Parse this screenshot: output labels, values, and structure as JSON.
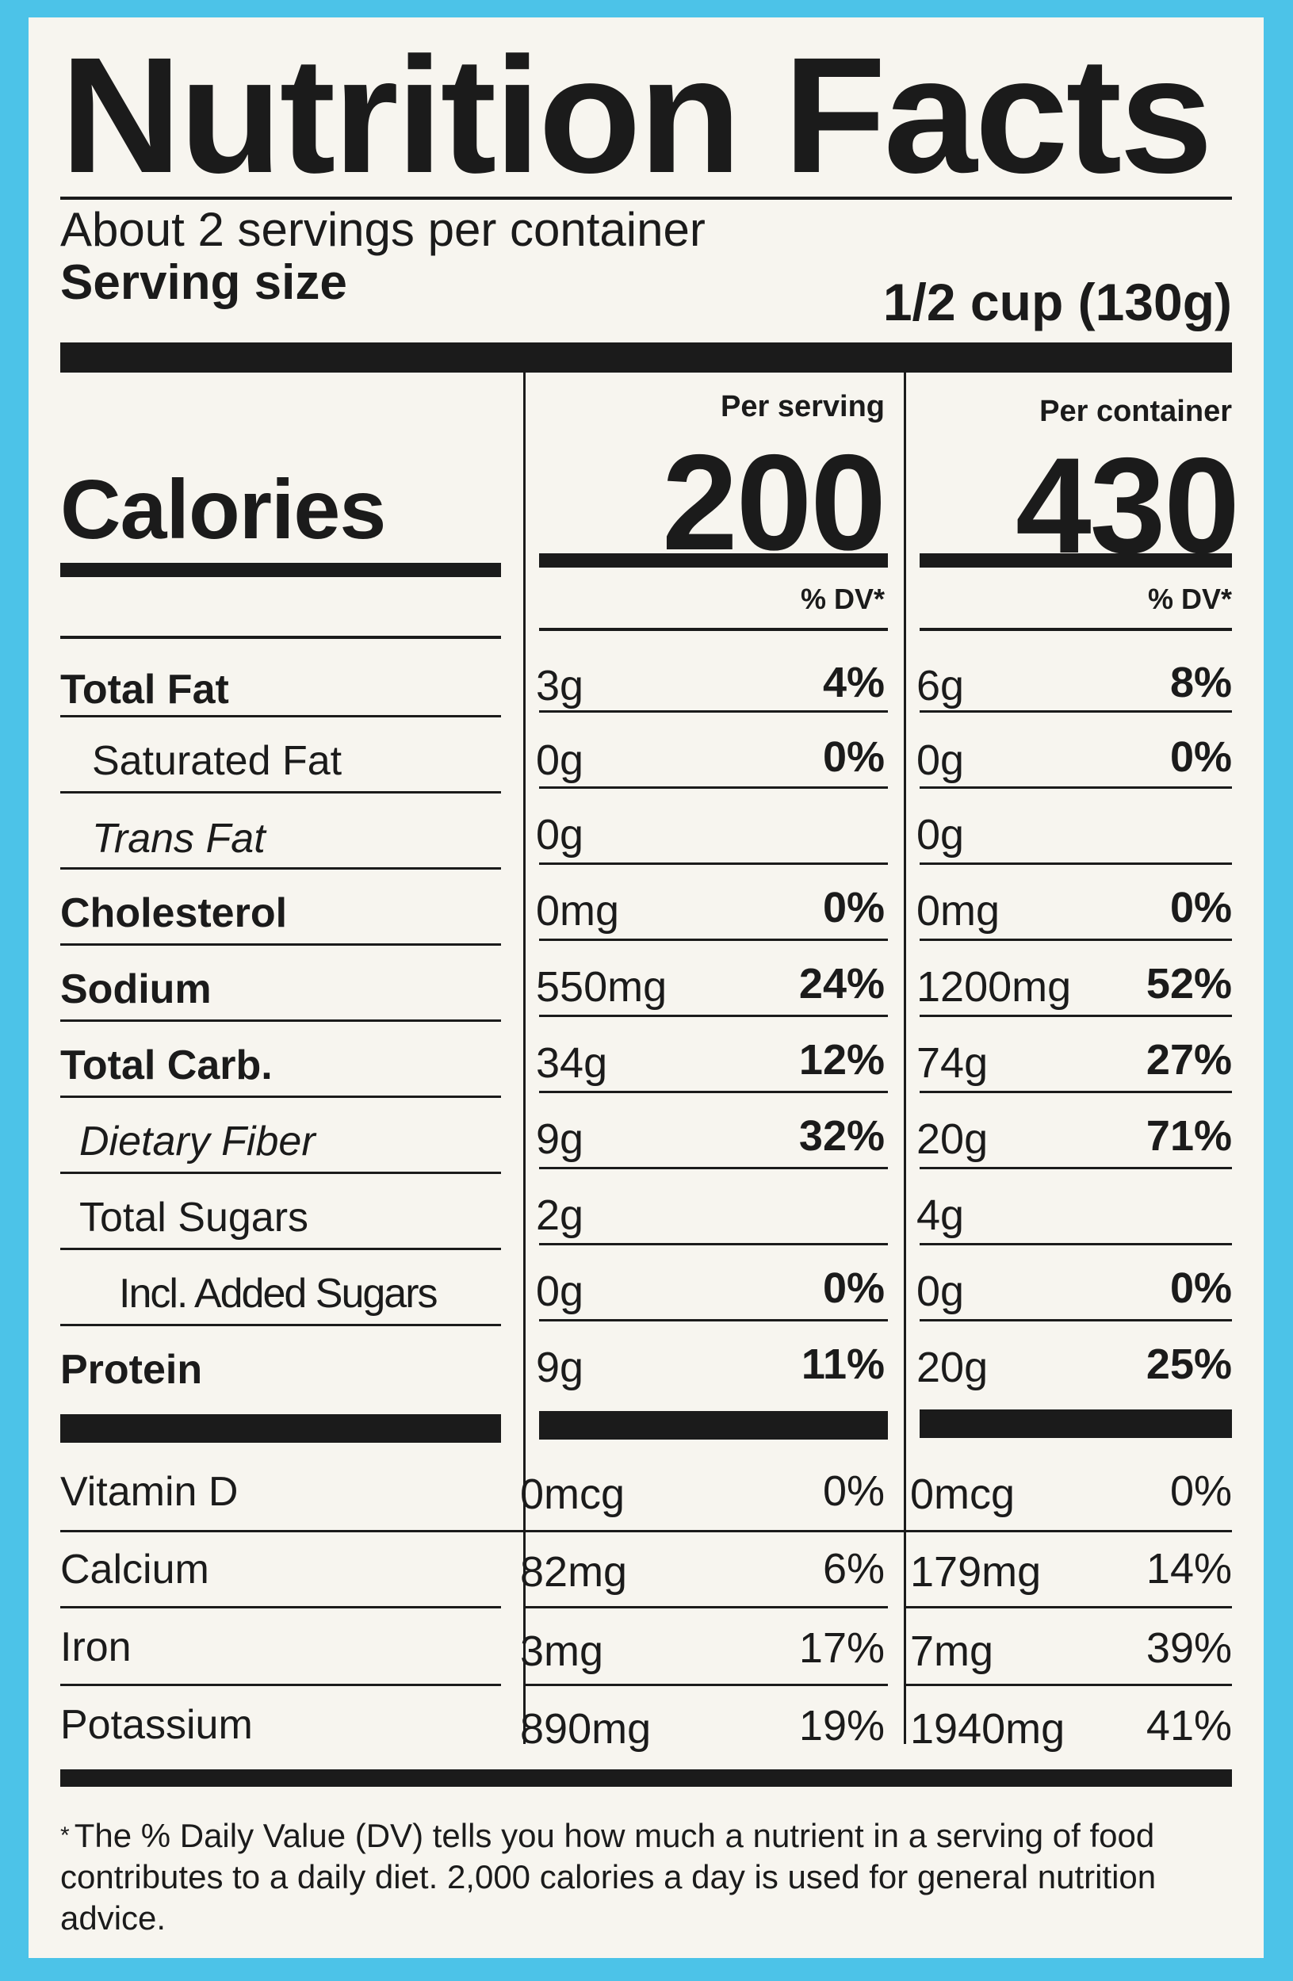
{
  "title": "Nutrition Facts",
  "servings_per_container": "About 2 servings per container",
  "serving_size_label": "Serving size",
  "serving_size_value": "1/2 cup (130g)",
  "col_per_serving": "Per serving",
  "col_per_container": "Per container",
  "calories_label": "Calories",
  "calories_per_serving": "200",
  "calories_per_container": "430",
  "dv_header": "% DV*",
  "nutrients": [
    {
      "name": "Total Fat",
      "serving_amount": "3g",
      "serving_dv": "4%",
      "container_amount": "6g",
      "container_dv": "8%"
    },
    {
      "name": "Saturated Fat",
      "serving_amount": "0g",
      "serving_dv": "0%",
      "container_amount": "0g",
      "container_dv": "0%"
    },
    {
      "name": "Trans Fat",
      "serving_amount": "0g",
      "serving_dv": "",
      "container_amount": "0g",
      "container_dv": ""
    },
    {
      "name": "Cholesterol",
      "serving_amount": "0mg",
      "serving_dv": "0%",
      "container_amount": "0mg",
      "container_dv": "0%"
    },
    {
      "name": "Sodium",
      "serving_amount": "550mg",
      "serving_dv": "24%",
      "container_amount": "1200mg",
      "container_dv": "52%"
    },
    {
      "name": "Total Carb.",
      "serving_amount": "34g",
      "serving_dv": "12%",
      "container_amount": "74g",
      "container_dv": "27%"
    },
    {
      "name": "Dietary Fiber",
      "serving_amount": "9g",
      "serving_dv": "32%",
      "container_amount": "20g",
      "container_dv": "71%"
    },
    {
      "name": "Total Sugars",
      "serving_amount": "2g",
      "serving_dv": "",
      "container_amount": "4g",
      "container_dv": ""
    },
    {
      "name": "Incl. Added Sugars",
      "serving_amount": "0g",
      "serving_dv": "0%",
      "container_amount": "0g",
      "container_dv": "0%"
    },
    {
      "name": "Protein",
      "serving_amount": "9g",
      "serving_dv": "11%",
      "container_amount": "20g",
      "container_dv": "25%"
    }
  ],
  "vitamins": [
    {
      "name": "Vitamin D",
      "serving_amount": "0mcg",
      "serving_dv": "0%",
      "container_amount": "0mcg",
      "container_dv": "0%"
    },
    {
      "name": "Calcium",
      "serving_amount": "82mg",
      "serving_dv": "6%",
      "container_amount": "179mg",
      "container_dv": "14%"
    },
    {
      "name": "Iron",
      "serving_amount": "3mg",
      "serving_dv": "17%",
      "container_amount": "7mg",
      "container_dv": "39%"
    },
    {
      "name": "Potassium",
      "serving_amount": "890mg",
      "serving_dv": "19%",
      "container_amount": "1940mg",
      "container_dv": "41%"
    }
  ],
  "footnote_star": "*",
  "footnote": "The % Daily Value (DV) tells you how much a nutrient in a serving of food contributes to a daily diet. 2,000 calories a day is used for general nutrition advice.",
  "colors": {
    "background": "#4cc3e8",
    "label": "#f7f5ef",
    "ink": "#1b1b1b"
  }
}
